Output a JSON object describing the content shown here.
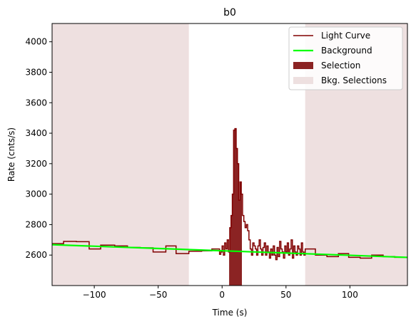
{
  "chart_data": {
    "type": "line",
    "title": "b0",
    "xlabel": "Time (s)",
    "ylabel": "Rate (cnts/s)",
    "xlim": [
      -133,
      145
    ],
    "ylim": [
      2400,
      4120
    ],
    "xticks": [
      -100,
      -50,
      0,
      50,
      100
    ],
    "xtick_labels": [
      "−100",
      "−50",
      "0",
      "50",
      "100"
    ],
    "yticks": [
      2600,
      2800,
      3000,
      3200,
      3400,
      3600,
      3800,
      4000
    ],
    "ytick_labels": [
      "2600",
      "2800",
      "3000",
      "3200",
      "3400",
      "3600",
      "3800",
      "4000"
    ],
    "grid": false,
    "legend_position": "top-right",
    "legend": [
      {
        "label": "Light Curve",
        "kind": "line",
        "color": "#800000"
      },
      {
        "label": "Background",
        "kind": "line",
        "color": "#00ff00"
      },
      {
        "label": "Selection",
        "kind": "patch",
        "color": "#8b2323"
      },
      {
        "label": "Bkg. Selections",
        "kind": "patch",
        "color": "#eee0e0"
      }
    ],
    "series": [
      {
        "name": "Light Curve",
        "color": "#800000",
        "drawstyle": "steps-post",
        "x": [
          -133,
          -124,
          -114,
          -104,
          -95,
          -84,
          -74,
          -64,
          -54,
          -44,
          -36,
          -26,
          -16,
          -8,
          -2,
          -1,
          0,
          1,
          2,
          3,
          4,
          5,
          6,
          7,
          8,
          9,
          10,
          11,
          12,
          13,
          14,
          15,
          16,
          17,
          18,
          19,
          20,
          21,
          22,
          23,
          24,
          25,
          26,
          27,
          28,
          29,
          30,
          31,
          32,
          33,
          34,
          35,
          36,
          37,
          38,
          39,
          40,
          41,
          42,
          43,
          44,
          45,
          46,
          47,
          48,
          49,
          50,
          51,
          52,
          53,
          54,
          55,
          56,
          57,
          58,
          59,
          60,
          61,
          62,
          63,
          64,
          65,
          73,
          82,
          91,
          99,
          108,
          117,
          126,
          135,
          145
        ],
        "y": [
          2675,
          2690,
          2688,
          2640,
          2665,
          2660,
          2650,
          2648,
          2620,
          2660,
          2610,
          2625,
          2628,
          2640,
          2605,
          2620,
          2660,
          2600,
          2680,
          2640,
          2700,
          2620,
          2780,
          2860,
          3000,
          3420,
          3430,
          3300,
          3200,
          2960,
          3080,
          3000,
          2860,
          2820,
          2780,
          2800,
          2760,
          2700,
          2640,
          2600,
          2680,
          2660,
          2640,
          2600,
          2660,
          2700,
          2640,
          2600,
          2650,
          2680,
          2600,
          2660,
          2620,
          2580,
          2640,
          2600,
          2660,
          2600,
          2570,
          2650,
          2590,
          2690,
          2640,
          2620,
          2580,
          2660,
          2620,
          2680,
          2600,
          2640,
          2700,
          2580,
          2660,
          2620,
          2600,
          2660,
          2640,
          2600,
          2680,
          2620,
          2600,
          2640,
          2600,
          2590,
          2610,
          2585,
          2580,
          2600,
          2590,
          2585,
          2585
        ]
      },
      {
        "name": "Background",
        "color": "#00ff00",
        "x": [
          -133,
          145
        ],
        "y": [
          2668,
          2585
        ]
      }
    ],
    "selection": {
      "label": "Selection",
      "range": [
        5.5,
        15.5
      ],
      "color": "#8b2323"
    },
    "bkg_selections": {
      "label": "Bkg. Selections",
      "color": "#eee0e0",
      "ranges": [
        [
          -133,
          -26
        ],
        [
          65,
          145
        ]
      ]
    }
  }
}
